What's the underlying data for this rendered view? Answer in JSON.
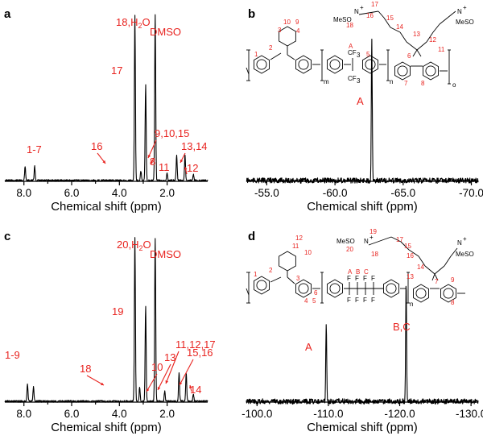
{
  "chart_data": [
    {
      "panel": "a",
      "type": "line",
      "xlabel": "Chemical shift (ppm)",
      "xlim": [
        8.8,
        0.3
      ],
      "x_reversed": true,
      "xticks": [
        "8.0",
        "6.0",
        "4.0",
        "2.0"
      ],
      "xtick_values": [
        8,
        6,
        4,
        2
      ],
      "peaks": [
        {
          "ppm": 7.95,
          "h": 0.1
        },
        {
          "ppm": 7.55,
          "h": 0.1
        },
        {
          "ppm": 3.35,
          "h": 1.15
        },
        {
          "ppm": 3.1,
          "h": 0.07
        },
        {
          "ppm": 2.9,
          "h": 0.66
        },
        {
          "ppm": 2.5,
          "h": 1.15
        },
        {
          "ppm": 2.0,
          "h": 0.05
        },
        {
          "ppm": 1.6,
          "h": 0.18
        },
        {
          "ppm": 1.25,
          "h": 0.18
        },
        {
          "ppm": 0.9,
          "h": 0.04
        }
      ],
      "labels": [
        {
          "text": "18,H2O",
          "ppm": 3.35
        },
        {
          "text": "DMSO",
          "ppm": 2.5
        },
        {
          "text": "17",
          "ppm": 2.9
        },
        {
          "text": "16",
          "ppm": 3.1
        },
        {
          "text": "8",
          "ppm": 2.0
        },
        {
          "text": "1-7",
          "ppm": 7.75
        },
        {
          "text": "9,10,15",
          "ppm": 1.6
        },
        {
          "text": "11",
          "ppm": 1.8
        },
        {
          "text": "13,14",
          "ppm": 1.25
        },
        {
          "text": "12",
          "ppm": 0.9
        }
      ]
    },
    {
      "panel": "b",
      "type": "line",
      "xlabel": "Chemical shift (ppm)",
      "xlim": [
        -53.5,
        -70.5
      ],
      "x_reversed": true,
      "xticks": [
        "-55.0",
        "-60.0",
        "-65.0",
        "-70.0"
      ],
      "xtick_values": [
        -55,
        -60,
        -65,
        -70
      ],
      "peaks": [
        {
          "ppm": -62.7,
          "h": 1.0
        }
      ],
      "labels": [
        {
          "text": "A",
          "ppm": -62.7
        }
      ]
    },
    {
      "panel": "c",
      "type": "line",
      "xlabel": "Chemical shift (ppm)",
      "xlim": [
        8.8,
        0.3
      ],
      "x_reversed": true,
      "xticks": [
        "8.0",
        "6.0",
        "4.0",
        "2.0"
      ],
      "xtick_values": [
        8,
        6,
        4,
        2
      ],
      "peaks": [
        {
          "ppm": 7.85,
          "h": 0.12
        },
        {
          "ppm": 7.6,
          "h": 0.1
        },
        {
          "ppm": 3.35,
          "h": 1.15
        },
        {
          "ppm": 3.15,
          "h": 0.1
        },
        {
          "ppm": 2.9,
          "h": 0.66
        },
        {
          "ppm": 2.5,
          "h": 1.15
        },
        {
          "ppm": 2.1,
          "h": 0.07
        },
        {
          "ppm": 1.5,
          "h": 0.2
        },
        {
          "ppm": 1.2,
          "h": 0.2
        },
        {
          "ppm": 0.9,
          "h": 0.05
        }
      ],
      "labels": [
        {
          "text": "20,H2O",
          "ppm": 3.35
        },
        {
          "text": "DMSO",
          "ppm": 2.5
        },
        {
          "text": "19",
          "ppm": 2.9
        },
        {
          "text": "18",
          "ppm": 3.15
        },
        {
          "text": "1-9",
          "ppm": 7.75
        },
        {
          "text": "10",
          "ppm": 2.1
        },
        {
          "text": "13",
          "ppm": 1.9
        },
        {
          "text": "11,12,17",
          "ppm": 1.5
        },
        {
          "text": "15,16",
          "ppm": 1.2
        },
        {
          "text": "14",
          "ppm": 0.9
        }
      ]
    },
    {
      "panel": "d",
      "type": "line",
      "xlabel": "Chemical shift (ppm)",
      "xlim": [
        -98.5,
        -131.0
      ],
      "x_reversed": true,
      "xticks": [
        "-100.0",
        "-110.0",
        "-120.0",
        "-130.0"
      ],
      "xtick_values": [
        -100,
        -110,
        -120,
        -130
      ],
      "peaks": [
        {
          "ppm": -109.7,
          "h": 0.55
        },
        {
          "ppm": -120.9,
          "h": 0.85
        }
      ],
      "labels": [
        {
          "text": "A",
          "ppm": -109.7
        },
        {
          "text": "B,C",
          "ppm": -120.9
        }
      ]
    }
  ],
  "panel_letters": [
    "a",
    "b",
    "c",
    "d"
  ],
  "structure_b": {
    "counter_ion": "MeSO",
    "counter_ion_sup": "-",
    "counter_ion_sub": "4",
    "nitrogen": "N",
    "nitrogen_charge": "+",
    "cf3": "CF",
    "cf3_sub": "3",
    "repeat_m": "m",
    "repeat_n": "n",
    "repeat_o": "o",
    "label_a": "A",
    "numbers": [
      "1",
      "2",
      "3",
      "4",
      "5",
      "6",
      "7",
      "8",
      "9",
      "10",
      "11",
      "12",
      "13",
      "14",
      "15",
      "16",
      "17",
      "18"
    ]
  },
  "structure_d": {
    "counter_ion": "MeSO",
    "counter_ion_sup": "-",
    "counter_ion_sub": "4",
    "nitrogen": "N",
    "nitrogen_charge": "+",
    "fluorine": "F",
    "repeat_n": "n",
    "labels_abc": [
      "A",
      "B",
      "C"
    ],
    "numbers": [
      "1",
      "2",
      "3",
      "4",
      "5",
      "6",
      "7",
      "8",
      "9",
      "10",
      "11",
      "12",
      "13",
      "14",
      "15",
      "16",
      "17",
      "18",
      "19",
      "20"
    ]
  }
}
